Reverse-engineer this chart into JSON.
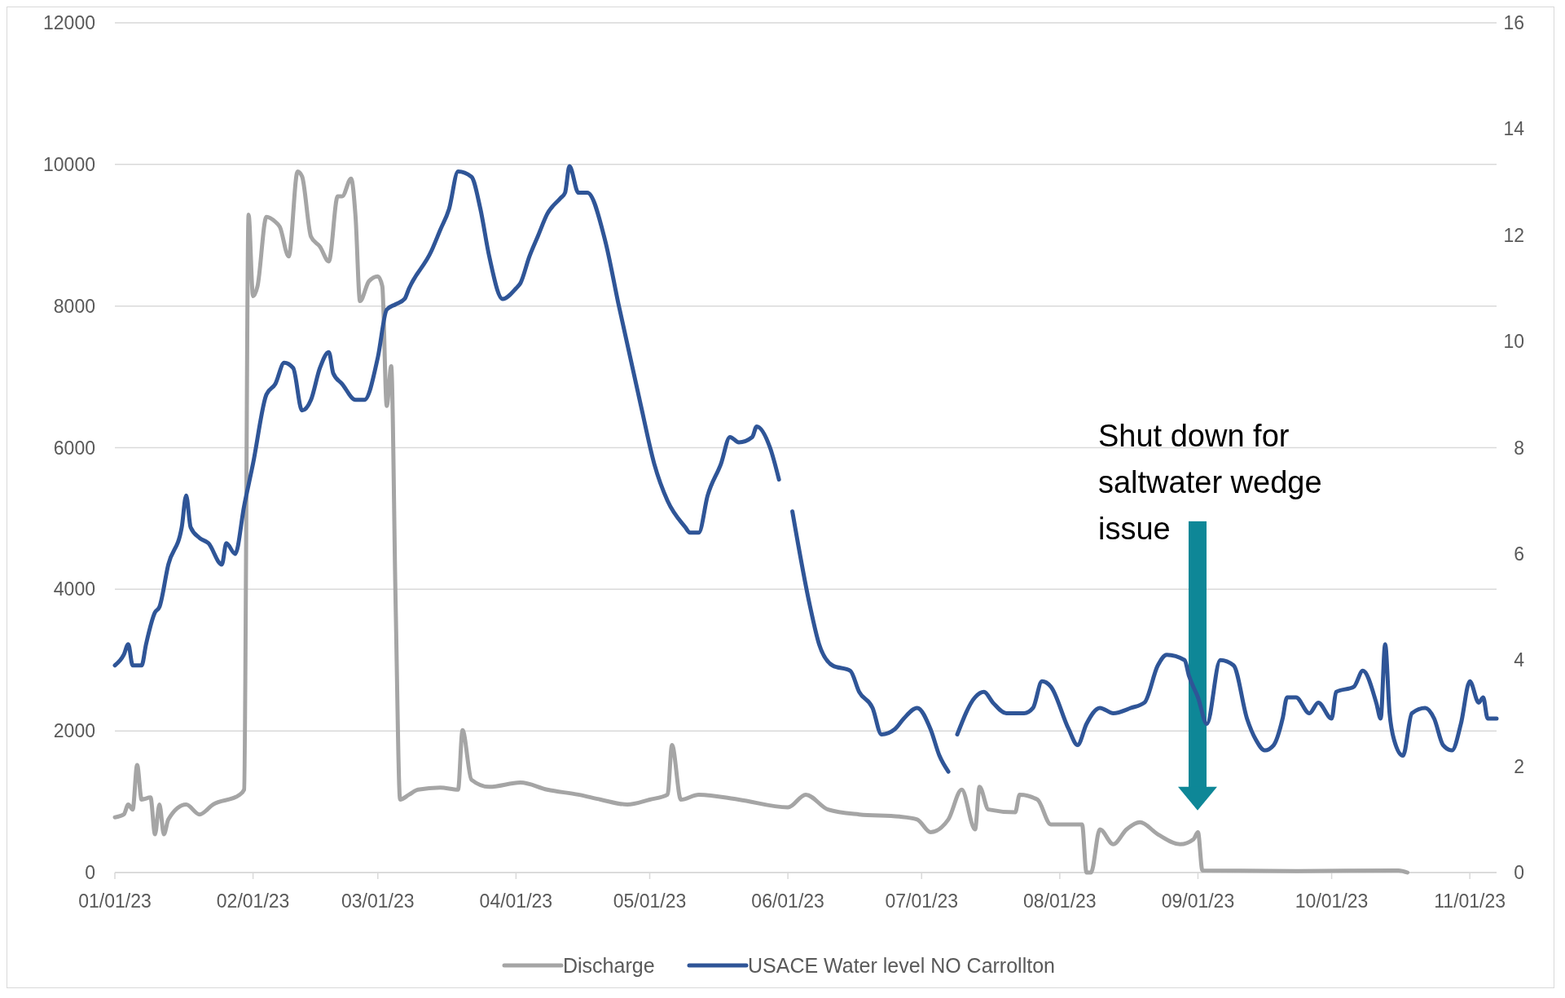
{
  "chart_data": {
    "type": "line",
    "xlim": [
      "2023-01-01",
      "2023-11-07"
    ],
    "xticks": [
      {
        "value": "2023-01-01",
        "label": "01/01/23"
      },
      {
        "value": "2023-02-01",
        "label": "02/01/23"
      },
      {
        "value": "2023-03-01",
        "label": "03/01/23"
      },
      {
        "value": "2023-04-01",
        "label": "04/01/23"
      },
      {
        "value": "2023-05-01",
        "label": "05/01/23"
      },
      {
        "value": "2023-06-01",
        "label": "06/01/23"
      },
      {
        "value": "2023-07-01",
        "label": "07/01/23"
      },
      {
        "value": "2023-08-01",
        "label": "08/01/23"
      },
      {
        "value": "2023-09-01",
        "label": "09/01/23"
      },
      {
        "value": "2023-10-01",
        "label": "10/01/23"
      },
      {
        "value": "2023-11-01",
        "label": "11/01/23"
      }
    ],
    "ylim": [
      0,
      12000
    ],
    "yticks": [
      0,
      2000,
      4000,
      6000,
      8000,
      10000,
      12000
    ],
    "y2lim": [
      0,
      16
    ],
    "y2ticks": [
      0,
      2,
      4,
      6,
      8,
      10,
      12,
      14,
      16
    ],
    "grid": "y",
    "legend": "bottom",
    "annotations": [
      "Shut down for saltwater wedge issue"
    ],
    "series": [
      {
        "name": "Discharge",
        "color": "#a5a5a5",
        "x": [
          "2023-01-01",
          "2023-01-03",
          "2023-01-04",
          "2023-01-05",
          "2023-01-06",
          "2023-01-07",
          "2023-01-09",
          "2023-01-10",
          "2023-01-11",
          "2023-01-12",
          "2023-01-13",
          "2023-01-17",
          "2023-01-20",
          "2023-01-23",
          "2023-01-29",
          "2023-01-30",
          "2023-01-31",
          "2023-02-01",
          "2023-02-02",
          "2023-02-04",
          "2023-02-06",
          "2023-02-07",
          "2023-02-09",
          "2023-02-11",
          "2023-02-12",
          "2023-02-14",
          "2023-02-16",
          "2023-02-18",
          "2023-02-20",
          "2023-02-21",
          "2023-02-23",
          "2023-02-24",
          "2023-02-25",
          "2023-02-27",
          "2023-03-01",
          "2023-03-02",
          "2023-03-03",
          "2023-03-04",
          "2023-03-05",
          "2023-03-06",
          "2023-03-08",
          "2023-03-10",
          "2023-03-15",
          "2023-03-19",
          "2023-03-20",
          "2023-03-22",
          "2023-03-26",
          "2023-04-02",
          "2023-04-08",
          "2023-04-15",
          "2023-04-20",
          "2023-04-26",
          "2023-05-01",
          "2023-05-05",
          "2023-05-06",
          "2023-05-08",
          "2023-05-12",
          "2023-05-21",
          "2023-06-01",
          "2023-06-05",
          "2023-06-10",
          "2023-06-17",
          "2023-06-26",
          "2023-06-30",
          "2023-07-03",
          "2023-07-07",
          "2023-07-10",
          "2023-07-13",
          "2023-07-14",
          "2023-07-16",
          "2023-07-22",
          "2023-07-23",
          "2023-07-27",
          "2023-07-30",
          "2023-08-06",
          "2023-08-07",
          "2023-08-08",
          "2023-08-10",
          "2023-08-13",
          "2023-08-16",
          "2023-08-19",
          "2023-08-23",
          "2023-08-28",
          "2023-08-31",
          "2023-09-01",
          "2023-09-02",
          "2023-09-23",
          "2023-10-16",
          "2023-10-18"
        ],
        "values": [
          780,
          820,
          960,
          890,
          1520,
          1030,
          1060,
          540,
          960,
          540,
          750,
          960,
          820,
          960,
          1100,
          1170,
          9290,
          8140,
          8280,
          9260,
          9190,
          9120,
          8700,
          9900,
          9830,
          8980,
          8840,
          8630,
          9550,
          9550,
          9800,
          9260,
          8070,
          8350,
          8420,
          8280,
          6590,
          7150,
          3770,
          1030,
          1100,
          1170,
          1200,
          1170,
          2010,
          1310,
          1210,
          1270,
          1170,
          1100,
          1030,
          960,
          1030,
          1100,
          1800,
          1030,
          1100,
          1030,
          920,
          1100,
          890,
          820,
          790,
          750,
          570,
          750,
          1170,
          610,
          1210,
          890,
          850,
          1100,
          1030,
          680,
          680,
          0,
          0,
          610,
          400,
          610,
          710,
          540,
          400,
          470,
          570,
          30,
          20,
          30,
          0
        ]
      },
      {
        "name": "USACE Water level NO Carrollton",
        "color": "#2f5597",
        "axis": "y2",
        "x": [
          "2023-01-01",
          "2023-01-03",
          "2023-01-04",
          "2023-01-05",
          "2023-01-07",
          "2023-01-08",
          "2023-01-10",
          "2023-01-11",
          "2023-01-13",
          "2023-01-16",
          "2023-01-17",
          "2023-01-18",
          "2023-01-20",
          "2023-01-22",
          "2023-01-25",
          "2023-01-26",
          "2023-01-28",
          "2023-01-30",
          "2023-02-01",
          "2023-02-04",
          "2023-02-06",
          "2023-02-08",
          "2023-02-10",
          "2023-02-12",
          "2023-02-14",
          "2023-02-16",
          "2023-02-18",
          "2023-02-19",
          "2023-02-21",
          "2023-02-24",
          "2023-02-26",
          "2023-03-01",
          "2023-03-03",
          "2023-03-05",
          "2023-03-07",
          "2023-03-08",
          "2023-03-13",
          "2023-03-15",
          "2023-03-17",
          "2023-03-19",
          "2023-03-22",
          "2023-03-24",
          "2023-03-26",
          "2023-03-29",
          "2023-04-01",
          "2023-04-02",
          "2023-04-04",
          "2023-04-06",
          "2023-04-08",
          "2023-04-11",
          "2023-04-12",
          "2023-04-13",
          "2023-04-15",
          "2023-04-17",
          "2023-04-21",
          "2023-04-24",
          "2023-04-29",
          "2023-05-02",
          "2023-05-05",
          "2023-05-09",
          "2023-05-10",
          "2023-05-12",
          "2023-05-14",
          "2023-05-17",
          "2023-05-19",
          "2023-05-21",
          "2023-05-24",
          "2023-05-25",
          "2023-05-28",
          "2023-05-30",
          "2023-05-31",
          "2023-06-02",
          "2023-06-06",
          "2023-06-08",
          "2023-06-11",
          "2023-06-15",
          "2023-06-17",
          "2023-06-20",
          "2023-06-22",
          "2023-06-25",
          "2023-06-27",
          "2023-06-30",
          "2023-07-03",
          "2023-07-05",
          "2023-07-07",
          "2023-07-08",
          "2023-07-09",
          "2023-07-13",
          "2023-07-15",
          "2023-07-17",
          "2023-07-20",
          "2023-07-24",
          "2023-07-26",
          "2023-07-28",
          "2023-07-30",
          "2023-08-03",
          "2023-08-05",
          "2023-08-07",
          "2023-08-10",
          "2023-08-13",
          "2023-08-17",
          "2023-08-20",
          "2023-08-23",
          "2023-08-25",
          "2023-08-29",
          "2023-08-30",
          "2023-09-01",
          "2023-09-03",
          "2023-09-06",
          "2023-09-09",
          "2023-09-12",
          "2023-09-14",
          "2023-09-16",
          "2023-09-18",
          "2023-09-20",
          "2023-09-21",
          "2023-09-23",
          "2023-09-26",
          "2023-09-28",
          "2023-10-01",
          "2023-10-02",
          "2023-10-06",
          "2023-10-08",
          "2023-10-11",
          "2023-10-12",
          "2023-10-13",
          "2023-10-14",
          "2023-10-15",
          "2023-10-17",
          "2023-10-19",
          "2023-10-22",
          "2023-10-24",
          "2023-10-26",
          "2023-10-28",
          "2023-10-30",
          "2023-11-01",
          "2023-11-03",
          "2023-11-04",
          "2023-11-05",
          "2023-11-07"
        ],
        "values": [
          3.9,
          4.1,
          4.3,
          3.9,
          3.9,
          4.3,
          4.9,
          5.0,
          5.8,
          6.5,
          7.1,
          6.5,
          6.3,
          6.2,
          5.8,
          6.2,
          6.0,
          6.9,
          7.7,
          9.0,
          9.2,
          9.6,
          9.5,
          8.7,
          8.9,
          9.5,
          9.8,
          9.4,
          9.2,
          8.9,
          8.9,
          9.7,
          10.6,
          10.7,
          10.8,
          11.0,
          11.7,
          12.1,
          12.5,
          13.2,
          13.1,
          12.5,
          11.6,
          10.8,
          11.0,
          11.1,
          11.6,
          12.0,
          12.4,
          12.7,
          12.8,
          13.3,
          12.8,
          12.8,
          11.9,
          10.7,
          8.8,
          7.7,
          7.0,
          6.5,
          6.4,
          6.4,
          7.1,
          7.7,
          8.2,
          8.1,
          8.2,
          8.4,
          8.0,
          7.4,
          null,
          6.8,
          5.0,
          4.3,
          3.9,
          3.8,
          3.4,
          3.1,
          2.6,
          2.7,
          2.9,
          3.1,
          2.7,
          2.2,
          1.9,
          null,
          2.6,
          3.3,
          3.4,
          3.2,
          3.0,
          3.0,
          3.1,
          3.6,
          3.5,
          2.7,
          2.4,
          2.8,
          3.1,
          3.0,
          3.1,
          3.2,
          3.9,
          4.1,
          4.0,
          3.7,
          3.3,
          2.8,
          4.0,
          3.9,
          2.9,
          2.5,
          2.3,
          2.4,
          2.9,
          3.3,
          3.3,
          3.0,
          3.2,
          2.9,
          3.4,
          3.5,
          3.8,
          3.2,
          2.9,
          4.3,
          3.0,
          2.5,
          2.2,
          3.0,
          3.1,
          2.9,
          2.4,
          2.3,
          2.8,
          3.6,
          3.2,
          3.3,
          2.9,
          2.9
        ]
      }
    ]
  }
}
